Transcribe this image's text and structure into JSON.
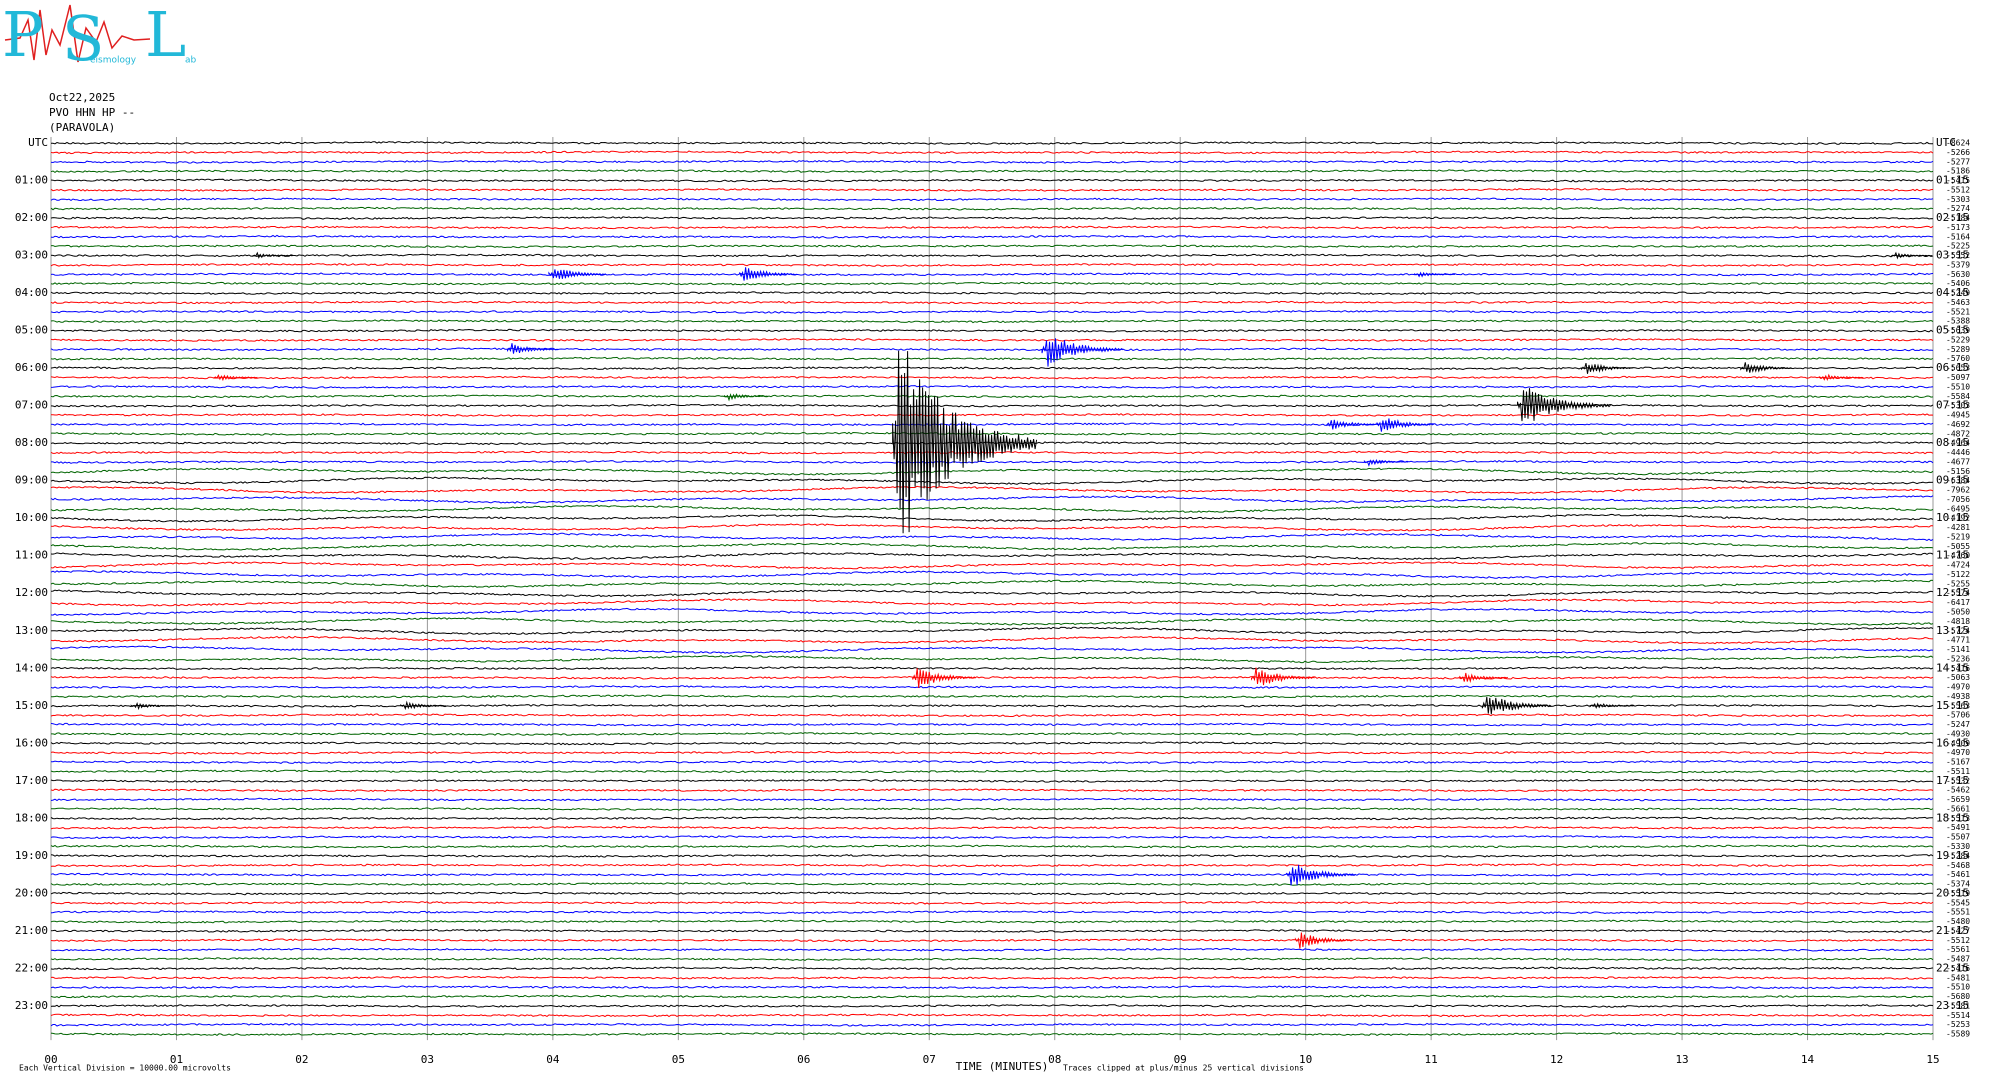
{
  "chart_data": {
    "type": "helicorder",
    "logo": {
      "letters": [
        "P",
        "S",
        "L"
      ],
      "small": [
        "eismology",
        "ab"
      ]
    },
    "date": "Oct22,2025",
    "station": "PVO HHN HP --",
    "site": "(PARAVOLA)",
    "left_labels": [
      "UTC",
      "01:00",
      "02:00",
      "03:00",
      "04:00",
      "05:00",
      "06:00",
      "07:00",
      "08:00",
      "09:00",
      "10:00",
      "11:00",
      "12:00",
      "13:00",
      "14:00",
      "15:00",
      "16:00",
      "17:00",
      "18:00",
      "19:00",
      "20:00",
      "21:00",
      "22:00",
      "23:00"
    ],
    "right_labels": [
      "UTC",
      "01:15",
      "02:15",
      "03:15",
      "04:15",
      "05:15",
      "06:15",
      "07:15",
      "08:15",
      "09:15",
      "10:15",
      "11:15",
      "12:15",
      "13:15",
      "14:15",
      "15:15",
      "16:15",
      "17:15",
      "18:15",
      "19:15",
      "20:15",
      "21:15",
      "22:15",
      "23:15"
    ],
    "offsets": [
      -8624,
      -5266,
      -5277,
      -5186,
      -5415,
      -5512,
      -5303,
      -5274,
      -5184,
      -5173,
      -5164,
      -5225,
      -5552,
      -5379,
      -5630,
      -5406,
      -5249,
      -5463,
      -5521,
      -5388,
      -5639,
      -5229,
      -5289,
      -5760,
      -5653,
      -5097,
      -5510,
      -5584,
      -5303,
      -4945,
      -4692,
      -4872,
      -4964,
      -4446,
      -4677,
      -5156,
      -6384,
      -7962,
      -7056,
      -6495,
      -4192,
      -4281,
      -5219,
      -5055,
      -4760,
      -4724,
      -5122,
      -5255,
      -5574,
      -6417,
      -5050,
      -4818,
      -5724,
      -4771,
      -5141,
      -5236,
      -5416,
      -5063,
      -4970,
      -4938,
      -5563,
      -5706,
      -5247,
      -4930,
      -4909,
      -4970,
      -5167,
      -5511,
      -5532,
      -5462,
      -5659,
      -5661,
      -5513,
      -5491,
      -5507,
      -5330,
      -5284,
      -5468,
      -5461,
      -5374,
      -5519,
      -5545,
      -5551,
      -5480,
      -5427,
      -5512,
      -5561,
      -5487,
      -5416,
      -5481,
      -5510,
      -5680,
      -5581,
      -5514,
      -5253,
      -5589
    ],
    "colors": [
      "#000000",
      "#ff0000",
      "#0000ff",
      "#006400"
    ],
    "grid_color": "#999999",
    "xlim": [
      0,
      15
    ],
    "xticks": [
      {
        "value": 0,
        "label": "00"
      },
      {
        "value": 1,
        "label": "01"
      },
      {
        "value": 2,
        "label": "02"
      },
      {
        "value": 3,
        "label": "03"
      },
      {
        "value": 4,
        "label": "04"
      },
      {
        "value": 5,
        "label": "05"
      },
      {
        "value": 6,
        "label": "06"
      },
      {
        "value": 7,
        "label": "07"
      },
      {
        "value": 8,
        "label": "08"
      },
      {
        "value": 9,
        "label": "09"
      },
      {
        "value": 10,
        "label": "10"
      },
      {
        "value": 11,
        "label": "11"
      },
      {
        "value": 12,
        "label": "12"
      },
      {
        "value": 13,
        "label": "13"
      },
      {
        "value": 14,
        "label": "14"
      },
      {
        "value": 15,
        "label": "15"
      }
    ],
    "xlabel": "TIME (MINUTES)",
    "clip_note": "Traces clipped at plus/minus 25 vertical divisions",
    "scale_note": "Each Vertical Division = 10000.00 microvolts",
    "events": [
      [
        12,
        1.64,
        0.6
      ],
      [
        14,
        4.0,
        2
      ],
      [
        14,
        5.52,
        2
      ],
      [
        14,
        10.9,
        0.6
      ],
      [
        12,
        14.7,
        0.6
      ],
      [
        32,
        6.74,
        25
      ],
      [
        22,
        7.93,
        4
      ],
      [
        22,
        3.67,
        1.5
      ],
      [
        24,
        12.23,
        1.5
      ],
      [
        24,
        13.5,
        1.5
      ],
      [
        28,
        11.72,
        5
      ],
      [
        25,
        1.33,
        0.8
      ],
      [
        25,
        14.13,
        0.8
      ],
      [
        27,
        5.4,
        0.8
      ],
      [
        30,
        10.2,
        1.5
      ],
      [
        30,
        10.6,
        2
      ],
      [
        34,
        10.5,
        0.8
      ],
      [
        57,
        6.9,
        2.5
      ],
      [
        57,
        9.6,
        2.5
      ],
      [
        57,
        11.26,
        1.2
      ],
      [
        60,
        0.67,
        0.8
      ],
      [
        60,
        11.44,
        3
      ],
      [
        60,
        12.3,
        0.8
      ],
      [
        60,
        2.82,
        1
      ],
      [
        78,
        9.88,
        3
      ],
      [
        85,
        9.95,
        2
      ]
    ]
  }
}
